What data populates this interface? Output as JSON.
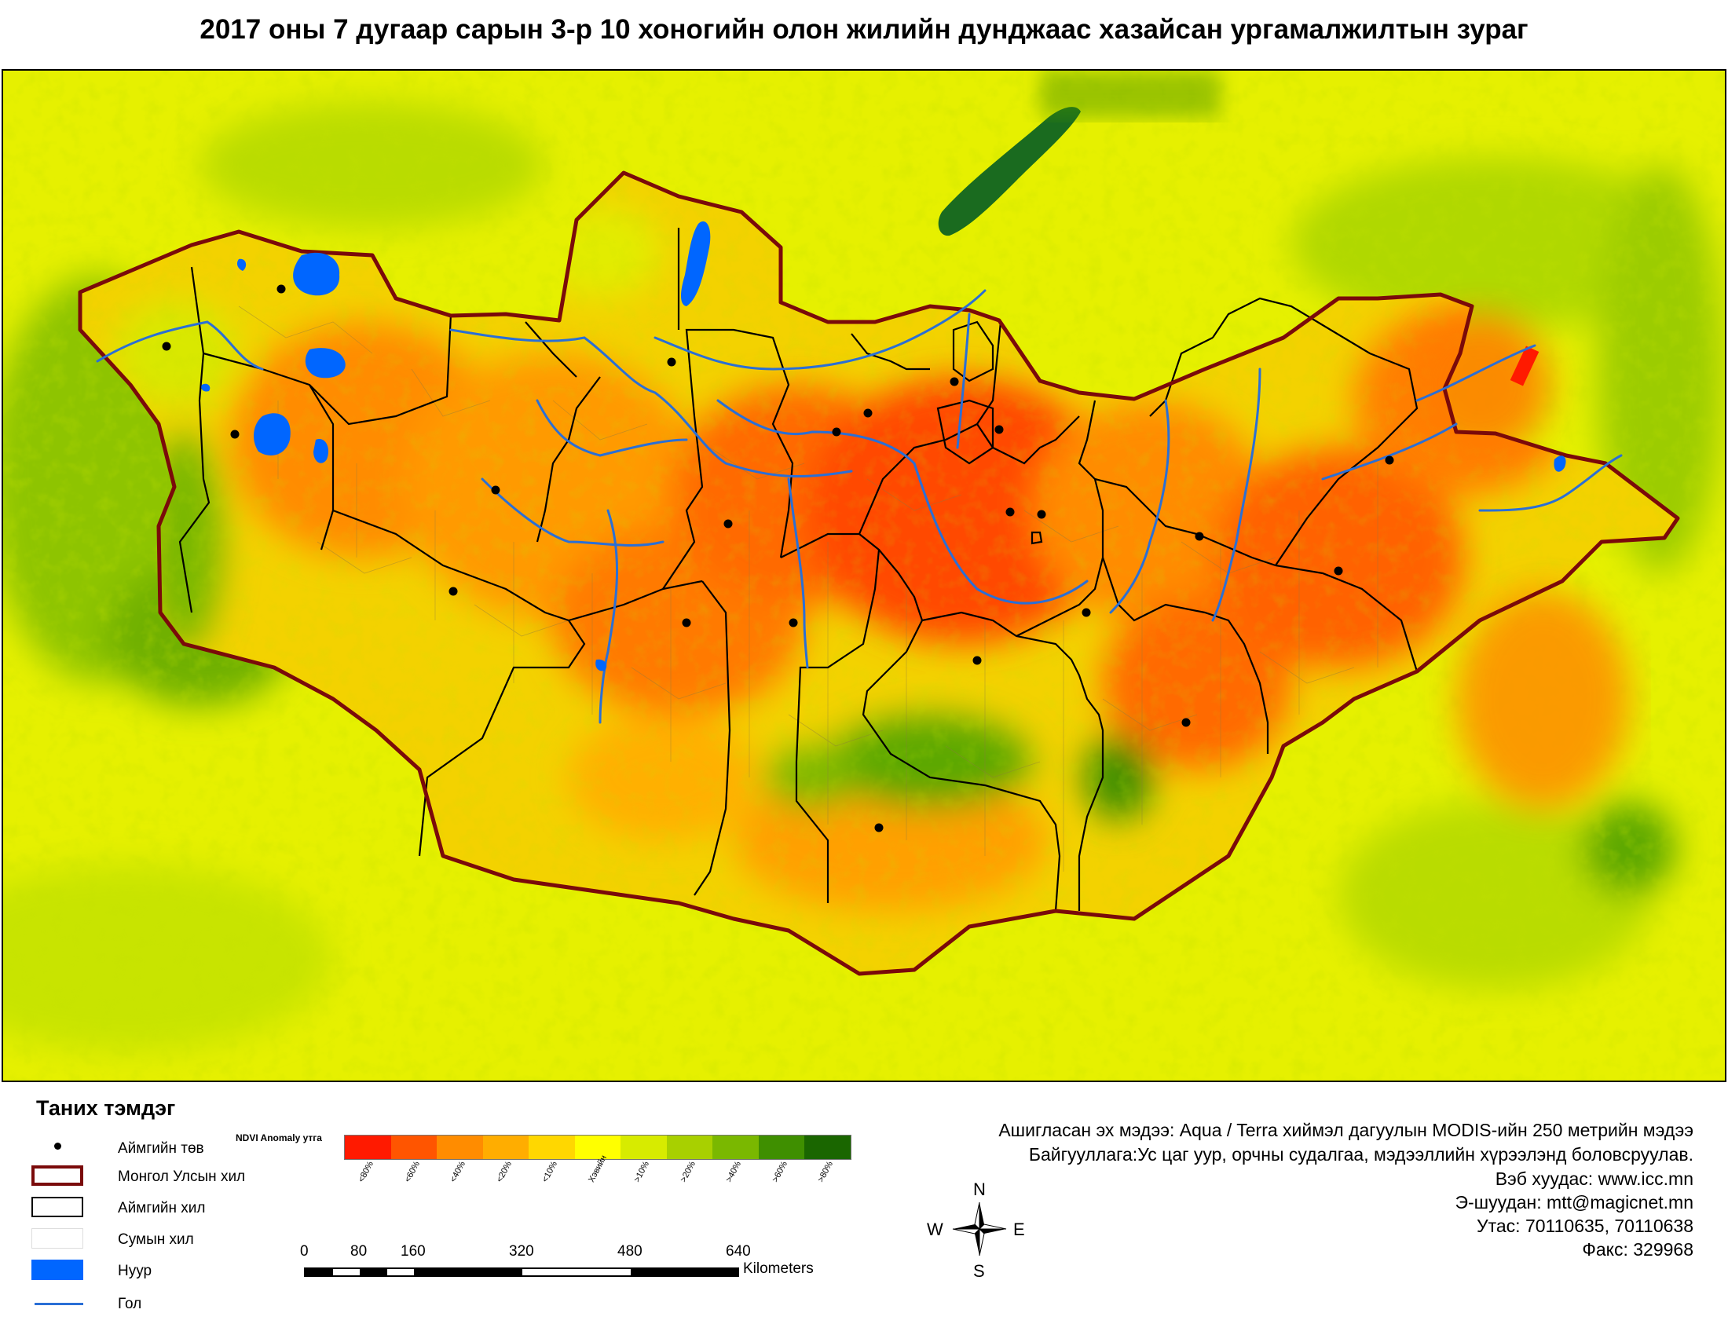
{
  "title": "2017 оны 7 дугаар сарын  3-р 10 хоногийн олон жилийн дунджаас хазайсан ургамалжилтын зураг",
  "map": {
    "layers": [
      "ndvi-anomaly-raster",
      "soum-boundaries",
      "aimag-boundaries",
      "national-boundary",
      "lakes",
      "rivers",
      "aimag-centers"
    ],
    "colors": {
      "background": "#e6f000",
      "national_boundary": "#7a0a0a",
      "aimag_boundary": "#000000",
      "lake": "#0066ff",
      "river": "#2a6fd6",
      "center_dot": "#000000"
    }
  },
  "legend": {
    "title": "Таних тэмдэг",
    "items": [
      {
        "label": "Аймгийн төв",
        "symbol": "dot"
      },
      {
        "label": "Монгол Улсын хил",
        "symbol": "box-darkred"
      },
      {
        "label": "Аймгийн хил",
        "symbol": "box-black"
      },
      {
        "label": "Сумын хил",
        "symbol": "box-light"
      },
      {
        "label": "Нуур",
        "symbol": "fill-blue"
      },
      {
        "label": "Гол",
        "symbol": "line-blue"
      }
    ]
  },
  "ramp": {
    "title": "NDVI Anomaly утга",
    "classes": [
      {
        "label": "<80%",
        "color": "#ff1a00"
      },
      {
        "label": "<60%",
        "color": "#ff5500"
      },
      {
        "label": "<40%",
        "color": "#ff8c00"
      },
      {
        "label": "<20%",
        "color": "#ffad00"
      },
      {
        "label": "<10%",
        "color": "#ffd700"
      },
      {
        "label": "Хэвийн",
        "color": "#ffff00"
      },
      {
        "label": ">10%",
        "color": "#d7eb00"
      },
      {
        "label": ">20%",
        "color": "#a8d000"
      },
      {
        "label": ">40%",
        "color": "#7ab800"
      },
      {
        "label": ">60%",
        "color": "#3f8f00"
      },
      {
        "label": ">80%",
        "color": "#1a6600"
      }
    ]
  },
  "scale": {
    "numbers": [
      "0",
      "80",
      "160",
      "320",
      "480",
      "640"
    ],
    "unit": "Kilometers"
  },
  "compass": {
    "n": "N",
    "s": "S",
    "e": "E",
    "w": "W"
  },
  "info": {
    "source": "Ашигласан эх мэдээ: Aqua / Terra хиймэл дагуулын MODIS-ийн 250 метрийн мэдээ",
    "org": "Байгууллага:Ус цаг уур, орчны судалгаа, мэдээллийн хүрээлэнд боловсруулав.",
    "web": "Вэб хуудас: www.icc.mn",
    "email": "Э-шуудан: mtt@magicnet.mn",
    "phone": "Утас: 70110635, 70110638",
    "fax": "Факс: 329968"
  }
}
